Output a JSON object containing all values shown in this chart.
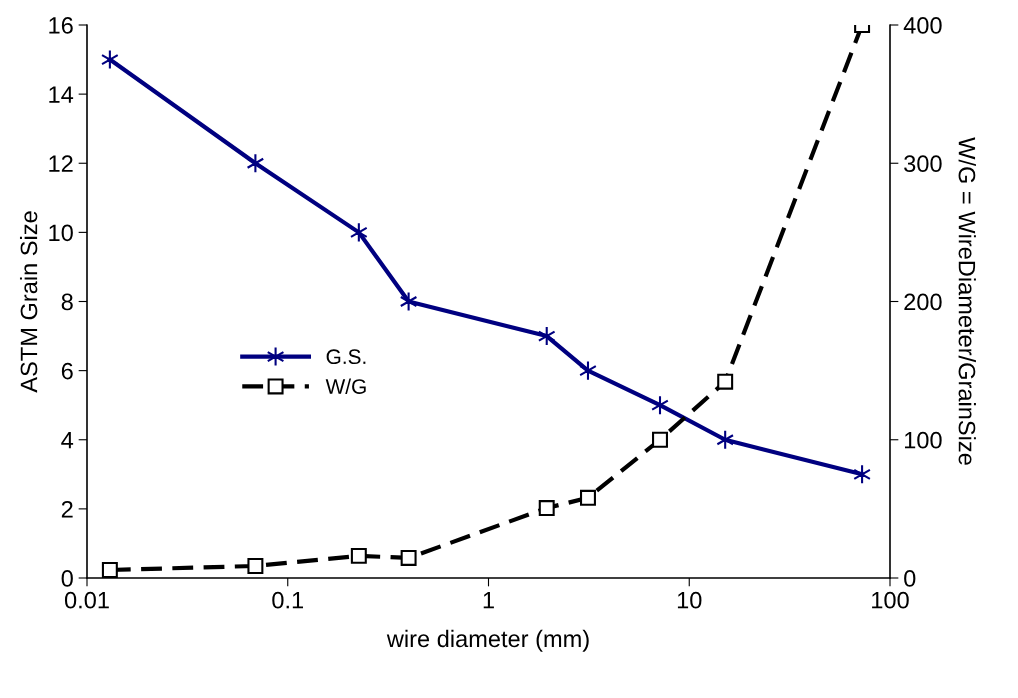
{
  "chart_data": {
    "type": "line",
    "xlabel": "wire diameter (mm)",
    "ylabel": "ASTM Grain Size",
    "y2label": "W/G = WireDiameter/GrainSize",
    "log": "x",
    "grid": false,
    "legend": "left",
    "xlim": [
      0.01,
      100
    ],
    "xticks": [
      {
        "value": 0.01,
        "label": "0.01"
      },
      {
        "value": 0.1,
        "label": "0.1"
      },
      {
        "value": 1,
        "label": "1"
      },
      {
        "value": 10,
        "label": "10"
      },
      {
        "value": 100,
        "label": "100"
      }
    ],
    "ylim": [
      0,
      16
    ],
    "yticks": [
      0,
      2,
      4,
      6,
      8,
      10,
      12,
      14,
      16
    ],
    "y2lim": [
      0,
      400
    ],
    "y2ticks": [
      0,
      100,
      200,
      300,
      400
    ],
    "x": [
      0.013,
      0.069,
      0.226,
      0.4,
      1.95,
      3.13,
      7.15,
      15.1,
      72.6
    ],
    "series": [
      {
        "name": "G.S.",
        "color": "#000080",
        "marker": "cross",
        "line_style": "solid",
        "values": [
          15,
          12,
          10,
          8,
          7,
          6,
          5,
          4,
          3
        ]
      },
      {
        "name": "W/G",
        "color": "#000000",
        "marker": "square",
        "line_style": "dashed",
        "axis": "y2",
        "values": [
          5.8,
          8.7,
          16,
          14.5,
          50.6,
          58,
          100,
          142,
          400
        ]
      }
    ]
  }
}
